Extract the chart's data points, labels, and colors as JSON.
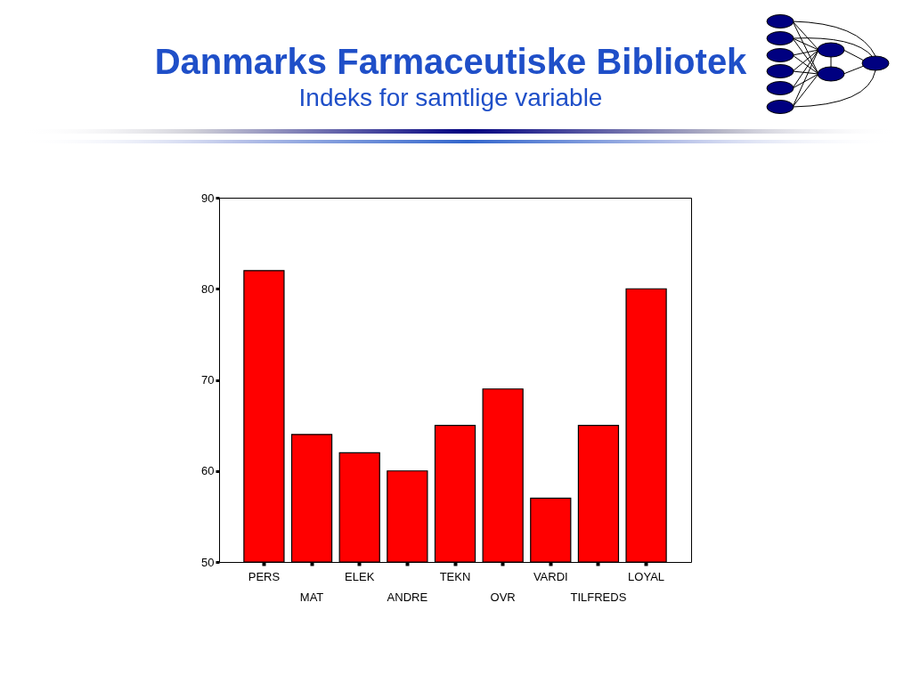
{
  "chart_data": {
    "type": "bar",
    "title": "Danmarks Farmaceutiske Bibliotek",
    "subtitle": "Indeks for samtlige variable",
    "categories": [
      "PERS",
      "MAT",
      "ELEK",
      "ANDRE",
      "TEKN",
      "OVR",
      "VARDI",
      "TILFREDS",
      "LOYAL"
    ],
    "values": [
      82,
      64,
      62,
      60,
      65,
      69,
      57,
      65,
      80
    ],
    "color": "#ff0000",
    "ylim": [
      50,
      90
    ],
    "yticks": [
      50,
      60,
      70,
      80,
      90
    ],
    "grid": false
  }
}
